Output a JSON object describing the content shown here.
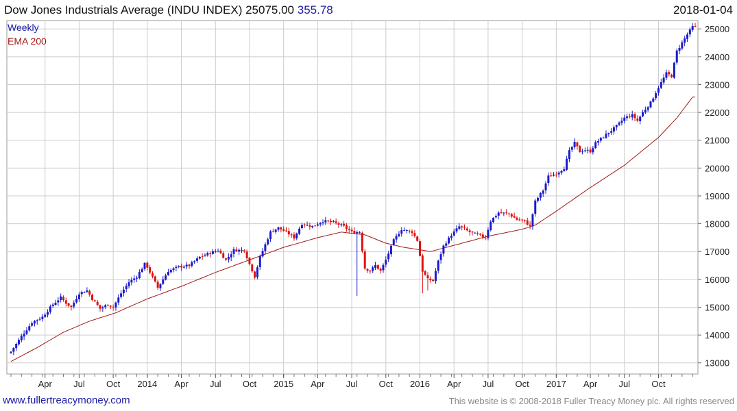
{
  "header": {
    "title": "Dow Jones Industrials Average (INDU INDEX) 25075.00",
    "change": "355.78",
    "date": "2018-01-04"
  },
  "footer": {
    "site": "www.fullertreacymoney.com",
    "copyright": "This website is © 2008-2018 Fuller Treacy Money plc. All rights reserved"
  },
  "colors": {
    "up": "#1a1acc",
    "down": "#dd1111",
    "ema": "#a01818",
    "grid": "#cccccc"
  },
  "chart_data": {
    "type": "line",
    "subtype": "candlestick-weekly-with-ema",
    "legend": [
      {
        "name": "Weekly",
        "color": "#1a1aa6"
      },
      {
        "name": "EMA 200",
        "color": "#a01818"
      }
    ],
    "legend_position": "top-left",
    "ylim": [
      12600,
      25300
    ],
    "y_axis_side": "right",
    "yticks": [
      13000,
      14000,
      15000,
      16000,
      17000,
      18000,
      19000,
      20000,
      21000,
      22000,
      23000,
      24000,
      25000
    ],
    "grid": true,
    "xlim": [
      0,
      261
    ],
    "xticks": [
      {
        "label": "Apr",
        "x": 13
      },
      {
        "label": "Jul",
        "x": 26
      },
      {
        "label": "Oct",
        "x": 39
      },
      {
        "label": "2014",
        "x": 52
      },
      {
        "label": "Apr",
        "x": 65
      },
      {
        "label": "Jul",
        "x": 78
      },
      {
        "label": "Oct",
        "x": 91
      },
      {
        "label": "2015",
        "x": 104
      },
      {
        "label": "Apr",
        "x": 117
      },
      {
        "label": "Jul",
        "x": 130
      },
      {
        "label": "Oct",
        "x": 143
      },
      {
        "label": "2016",
        "x": 156
      },
      {
        "label": "Apr",
        "x": 169
      },
      {
        "label": "Jul",
        "x": 182
      },
      {
        "label": "Oct",
        "x": 195
      },
      {
        "label": "2017",
        "x": 208
      },
      {
        "label": "Apr",
        "x": 221
      },
      {
        "label": "Jul",
        "x": 234
      },
      {
        "label": "Oct",
        "x": 247
      }
    ],
    "close_anchors": [
      [
        0,
        13400
      ],
      [
        4,
        13950
      ],
      [
        8,
        14450
      ],
      [
        12,
        14650
      ],
      [
        16,
        15100
      ],
      [
        19,
        15350
      ],
      [
        21,
        15150
      ],
      [
        23,
        15000
      ],
      [
        26,
        15500
      ],
      [
        29,
        15600
      ],
      [
        31,
        15300
      ],
      [
        34,
        14950
      ],
      [
        37,
        15100
      ],
      [
        39,
        15000
      ],
      [
        42,
        15500
      ],
      [
        45,
        15900
      ],
      [
        48,
        16100
      ],
      [
        51,
        16550
      ],
      [
        52,
        16450
      ],
      [
        56,
        15700
      ],
      [
        60,
        16300
      ],
      [
        64,
        16450
      ],
      [
        68,
        16500
      ],
      [
        72,
        16800
      ],
      [
        76,
        16950
      ],
      [
        79,
        17050
      ],
      [
        82,
        16700
      ],
      [
        85,
        17050
      ],
      [
        89,
        17050
      ],
      [
        91,
        16550
      ],
      [
        93,
        16100
      ],
      [
        95,
        16800
      ],
      [
        99,
        17700
      ],
      [
        102,
        17850
      ],
      [
        105,
        17700
      ],
      [
        108,
        17500
      ],
      [
        111,
        18000
      ],
      [
        115,
        17900
      ],
      [
        119,
        18100
      ],
      [
        123,
        18050
      ],
      [
        127,
        17900
      ],
      [
        130,
        17700
      ],
      [
        133,
        17700
      ],
      [
        135,
        16400
      ],
      [
        137,
        16300
      ],
      [
        139,
        16500
      ],
      [
        141,
        16300
      ],
      [
        143,
        16700
      ],
      [
        146,
        17400
      ],
      [
        149,
        17800
      ],
      [
        153,
        17700
      ],
      [
        155,
        17400
      ],
      [
        157,
        16300
      ],
      [
        159,
        16000
      ],
      [
        161,
        15950
      ],
      [
        163,
        16650
      ],
      [
        165,
        17200
      ],
      [
        168,
        17600
      ],
      [
        171,
        17900
      ],
      [
        175,
        17700
      ],
      [
        178,
        17600
      ],
      [
        181,
        17500
      ],
      [
        183,
        18100
      ],
      [
        186,
        18400
      ],
      [
        190,
        18350
      ],
      [
        193,
        18150
      ],
      [
        196,
        18100
      ],
      [
        198,
        17900
      ],
      [
        200,
        18800
      ],
      [
        203,
        19200
      ],
      [
        205,
        19700
      ],
      [
        208,
        19800
      ],
      [
        211,
        20000
      ],
      [
        213,
        20600
      ],
      [
        215,
        20900
      ],
      [
        217,
        20600
      ],
      [
        219,
        20650
      ],
      [
        221,
        20600
      ],
      [
        223,
        20900
      ],
      [
        227,
        21200
      ],
      [
        231,
        21500
      ],
      [
        234,
        21800
      ],
      [
        237,
        21900
      ],
      [
        239,
        21700
      ],
      [
        241,
        22000
      ],
      [
        244,
        22350
      ],
      [
        247,
        22900
      ],
      [
        250,
        23400
      ],
      [
        252,
        23300
      ],
      [
        254,
        24200
      ],
      [
        256,
        24500
      ],
      [
        258,
        24800
      ],
      [
        260,
        25075
      ]
    ],
    "ema_anchors": [
      [
        0,
        13050
      ],
      [
        10,
        13550
      ],
      [
        20,
        14100
      ],
      [
        30,
        14500
      ],
      [
        40,
        14800
      ],
      [
        52,
        15300
      ],
      [
        65,
        15750
      ],
      [
        78,
        16250
      ],
      [
        91,
        16700
      ],
      [
        104,
        17150
      ],
      [
        117,
        17500
      ],
      [
        126,
        17700
      ],
      [
        135,
        17600
      ],
      [
        143,
        17300
      ],
      [
        150,
        17150
      ],
      [
        157,
        17050
      ],
      [
        160,
        17000
      ],
      [
        170,
        17250
      ],
      [
        182,
        17550
      ],
      [
        195,
        17800
      ],
      [
        200,
        17950
      ],
      [
        208,
        18450
      ],
      [
        221,
        19300
      ],
      [
        234,
        20100
      ],
      [
        247,
        21100
      ],
      [
        254,
        21800
      ],
      [
        260,
        22550
      ]
    ],
    "notable_lows": [
      [
        132,
        15400
      ],
      [
        157,
        15500
      ],
      [
        159,
        15600
      ]
    ]
  }
}
